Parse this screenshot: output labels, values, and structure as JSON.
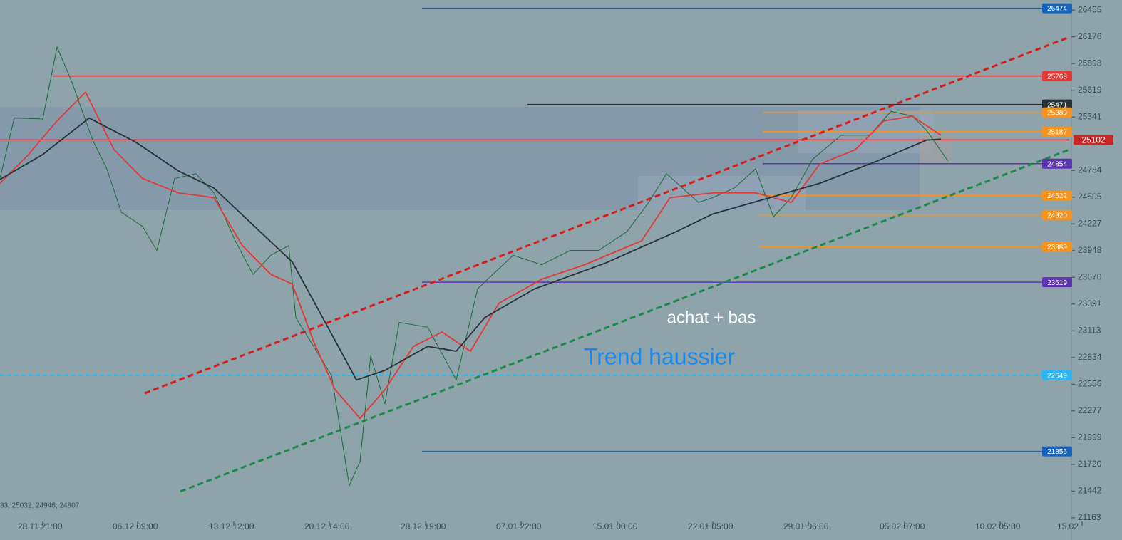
{
  "chart_data": {
    "type": "line",
    "xlim": [
      0,
      1500
    ],
    "ylim": [
      21140,
      26560
    ],
    "xticks": [
      {
        "value": 60,
        "label": "28.11 21:00"
      },
      {
        "value": 193,
        "label": "06.12 09:00"
      },
      {
        "value": 328,
        "label": "13.12 12:00"
      },
      {
        "value": 462,
        "label": "20.12 14:00"
      },
      {
        "value": 597,
        "label": "28.12 19:00"
      },
      {
        "value": 731,
        "label": "07.01 22:00"
      },
      {
        "value": 866,
        "label": "15.01 00:00"
      },
      {
        "value": 1000,
        "label": "22.01 05:00"
      },
      {
        "value": 1134,
        "label": "29.01 06:00"
      },
      {
        "value": 1269,
        "label": "05.02 07:00"
      },
      {
        "value": 1403,
        "label": "10.02 05:00"
      },
      {
        "value": 1518,
        "label": "15.02"
      }
    ],
    "yticks": [
      26455,
      26176,
      25898,
      25619,
      25341,
      24784,
      24505,
      24227,
      23948,
      23670,
      23391,
      23113,
      22834,
      22556,
      22277,
      21999,
      21720,
      21442,
      21163
    ],
    "series": [
      {
        "color": "#1f6b3a",
        "x": [
          0,
          20,
          60,
          80,
          100,
          130,
          150,
          170,
          200,
          220,
          245,
          275,
          300,
          330,
          355,
          380,
          405,
          415,
          440,
          465,
          490,
          505,
          520,
          540,
          560,
          600,
          640,
          670,
          720,
          760,
          800,
          840,
          880,
          910,
          935,
          980,
          1000,
          1030,
          1060,
          1085,
          1110,
          1140,
          1180,
          1220,
          1250,
          1280,
          1300,
          1330
        ],
        "values": [
          24700,
          25330,
          25320,
          26070,
          25720,
          25100,
          24800,
          24350,
          24200,
          23950,
          24700,
          24750,
          24550,
          24050,
          23700,
          23900,
          24000,
          23250,
          22950,
          22650,
          21500,
          21750,
          22850,
          22350,
          23200,
          23150,
          22600,
          23550,
          23900,
          23800,
          23950,
          23950,
          24150,
          24450,
          24750,
          24450,
          24500,
          24600,
          24800,
          24300,
          24500,
          24900,
          25150,
          25150,
          25400,
          25350,
          25200,
          24880
        ]
      },
      {
        "color": "#e53935",
        "x": [
          0,
          40,
          80,
          120,
          160,
          200,
          250,
          300,
          340,
          380,
          410,
          440,
          470,
          505,
          540,
          580,
          620,
          660,
          700,
          760,
          820,
          900,
          940,
          1000,
          1060,
          1110,
          1150,
          1200,
          1240,
          1280,
          1320
        ],
        "values": [
          24650,
          24950,
          25300,
          25600,
          25000,
          24700,
          24550,
          24500,
          24000,
          23700,
          23600,
          23000,
          22500,
          22200,
          22500,
          22950,
          23100,
          22900,
          23400,
          23650,
          23800,
          24050,
          24500,
          24550,
          24550,
          24450,
          24850,
          25000,
          25300,
          25350,
          25150
        ]
      },
      {
        "color": "#263238",
        "x": [
          0,
          60,
          125,
          190,
          250,
          300,
          350,
          410,
          460,
          500,
          540,
          600,
          640,
          680,
          750,
          850,
          950,
          1000,
          1080,
          1150,
          1230,
          1300,
          1320
        ],
        "values": [
          24690,
          24950,
          25330,
          25080,
          24780,
          24600,
          24250,
          23830,
          23150,
          22600,
          22700,
          22950,
          22900,
          23250,
          23550,
          23820,
          24150,
          24330,
          24500,
          24650,
          24880,
          25100,
          25110
        ]
      }
    ],
    "levels": [
      {
        "value": 26474,
        "color": "#1565c0",
        "x_start": 592
      },
      {
        "value": 25768,
        "color": "#e53935",
        "x_start": 75
      },
      {
        "value": 25471,
        "color": "#263238",
        "x_start": 740
      },
      {
        "value": 25389,
        "color": "#f7931a",
        "x_start": 1070
      },
      {
        "value": 25187,
        "color": "#f7931a",
        "x_start": 1070
      },
      {
        "value": 25102,
        "color": "#c62828",
        "x_start": 0
      },
      {
        "value": 24854,
        "color": "#5e35b1",
        "x_start": 1070
      },
      {
        "value": 24522,
        "color": "#f7931a",
        "x_start": 1065
      },
      {
        "value": 24320,
        "color": "#f7931a",
        "x_start": 1065
      },
      {
        "value": 23989,
        "color": "#f7931a",
        "x_start": 1065
      },
      {
        "value": 23619,
        "color": "#5e35b1",
        "x_start": 592
      },
      {
        "value": 22649,
        "color": "#29b6f6",
        "x_start": 0,
        "dashed": true
      },
      {
        "value": 21856,
        "color": "#1565c0",
        "x_start": 592
      }
    ],
    "trendlines": [
      {
        "color": "#d81b1b",
        "x": [
          203,
          1500
        ],
        "values": [
          22462,
          26173
        ]
      },
      {
        "color": "#1b8a4a",
        "x": [
          253,
          1500
        ],
        "values": [
          21438,
          25000
        ]
      }
    ],
    "annotations": [
      "achat + bas",
      "Trend haussier"
    ],
    "ohlc_text": "33, 25032, 24946, 24807"
  }
}
